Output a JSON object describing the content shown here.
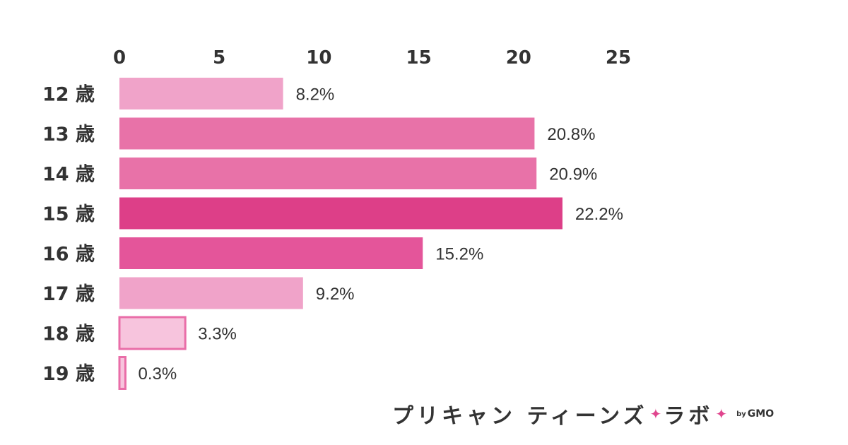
{
  "chart_data": {
    "type": "bar",
    "orientation": "horizontal",
    "categories": [
      "12 歳",
      "13 歳",
      "14 歳",
      "15 歳",
      "16 歳",
      "17 歳",
      "18 歳",
      "19 歳"
    ],
    "values": [
      8.2,
      20.8,
      20.9,
      22.2,
      15.2,
      9.2,
      3.3,
      0.3
    ],
    "value_labels": [
      "8.2%",
      "20.8%",
      "20.9%",
      "22.2%",
      "15.2%",
      "9.2%",
      "3.3%",
      "0.3%"
    ],
    "x_ticks": [
      0,
      5,
      10,
      15,
      20,
      25
    ],
    "xlim": [
      0,
      25
    ],
    "x_axis_position": "top",
    "grid": false,
    "bar_colors": [
      "#f0a3c9",
      "#e872a8",
      "#e872a8",
      "#dd3f88",
      "#e4559a",
      "#f0a3c9",
      "#f7c4dd",
      "#f7c4dd"
    ],
    "bar_borders": [
      "",
      "",
      "",
      "",
      "",
      "",
      "#e96ea8",
      "#e96ea8"
    ]
  },
  "footer": {
    "brand_left": "プリキャン ティーンズ",
    "sparkle": "✦",
    "brand_right": "ラボ",
    "by": "by",
    "company": "GMO"
  }
}
